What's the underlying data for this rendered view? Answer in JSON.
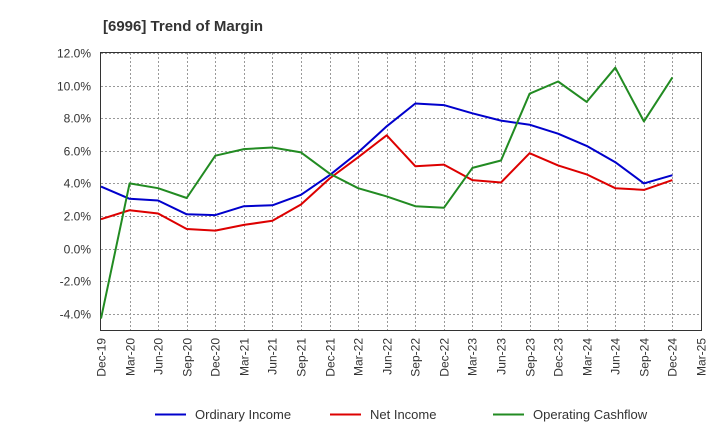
{
  "chart_data": {
    "type": "line",
    "title": "[6996]  Trend of Margin",
    "xlabel": "",
    "ylabel": "",
    "x_ticks": [
      "Dec-19",
      "Mar-20",
      "Jun-20",
      "Sep-20",
      "Dec-20",
      "Mar-21",
      "Jun-21",
      "Sep-21",
      "Dec-21",
      "Mar-22",
      "Jun-22",
      "Sep-22",
      "Dec-22",
      "Mar-23",
      "Jun-23",
      "Sep-23",
      "Dec-23",
      "Mar-24",
      "Jun-24",
      "Sep-24",
      "Dec-24",
      "Mar-25"
    ],
    "y_ticks": [
      "12.0%",
      "10.0%",
      "8.0%",
      "6.0%",
      "4.0%",
      "2.0%",
      "0.0%",
      "-2.0%",
      "-4.0%"
    ],
    "ylim": [
      -5,
      12
    ],
    "grid": true,
    "legend_position": "bottom",
    "series": [
      {
        "name": "Ordinary Income",
        "color": "#0000cc",
        "values": [
          3.8,
          3.05,
          2.95,
          2.1,
          2.05,
          2.6,
          2.65,
          3.3,
          4.5,
          5.9,
          7.5,
          8.9,
          8.8,
          8.3,
          7.85,
          7.6,
          7.05,
          6.3,
          5.3,
          4.0,
          4.5
        ]
      },
      {
        "name": "Net Income",
        "color": "#dd0000",
        "values": [
          1.8,
          2.35,
          2.15,
          1.2,
          1.1,
          1.45,
          1.7,
          2.7,
          4.3,
          5.6,
          6.95,
          5.05,
          5.15,
          4.2,
          4.05,
          5.85,
          5.1,
          4.55,
          3.7,
          3.6,
          4.2
        ]
      },
      {
        "name": "Operating Cashflow",
        "color": "#228b22",
        "values": [
          -4.3,
          4.0,
          3.7,
          3.1,
          5.7,
          6.1,
          6.2,
          5.9,
          4.6,
          3.7,
          3.2,
          2.6,
          2.5,
          4.95,
          5.4,
          9.5,
          10.25,
          9.0,
          11.1,
          7.8,
          10.5
        ]
      }
    ]
  }
}
